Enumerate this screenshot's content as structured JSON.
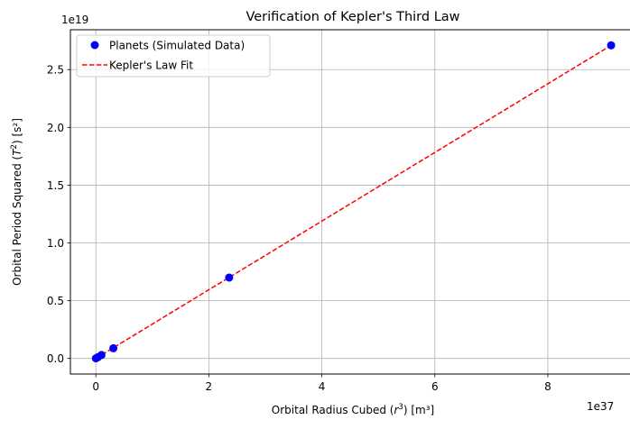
{
  "chart_data": {
    "type": "scatter",
    "title": "Verification of Kepler's Third Law",
    "xlabel_prefix": "Orbital Radius Cubed (",
    "xlabel_var": "r",
    "xlabel_exp": "3",
    "xlabel_suffix": ") [m³]",
    "ylabel_prefix": "Orbital Period Squared (",
    "ylabel_var": "T",
    "ylabel_exp": "2",
    "ylabel_suffix": ") [s²]",
    "x_offset_label": "1e37",
    "y_offset_label": "1e19",
    "x_scale": 1e+37,
    "y_scale": 1e+19,
    "xlim": [
      -4.5e+36,
      9.55e+37
    ],
    "ylim": [
      -1.35e+18,
      2.845e+19
    ],
    "x_ticks": [
      0,
      2e+37,
      4e+37,
      6e+37,
      8e+37
    ],
    "x_tick_labels": [
      "0",
      "2",
      "4",
      "6",
      "8"
    ],
    "y_ticks": [
      0,
      5e+18,
      1e+19,
      1.5e+19,
      2e+19,
      2.5e+19
    ],
    "y_tick_labels": [
      "0.0",
      "0.5",
      "1.0",
      "1.5",
      "2.0",
      "2.5"
    ],
    "grid": true,
    "legend_position": "top-left",
    "series": [
      {
        "name": "Planets (Simulated Data)",
        "kind": "markers",
        "color": "#0000ff",
        "x": [
          2.2e+34,
          3.78e+35,
          9.96e+35,
          3.1e+36,
          2.36e+37,
          9.12e+37
        ],
        "y": [
          7000000000000000.0,
          1.12e+17,
          2.97e+17,
          8.8e+17,
          7e+18,
          2.71e+19
        ]
      },
      {
        "name": "Kepler's Law Fit",
        "kind": "dashed-line",
        "color": "#ff0000",
        "x": [
          0,
          9.12e+37
        ],
        "y": [
          0,
          2.71e+19
        ]
      }
    ]
  }
}
